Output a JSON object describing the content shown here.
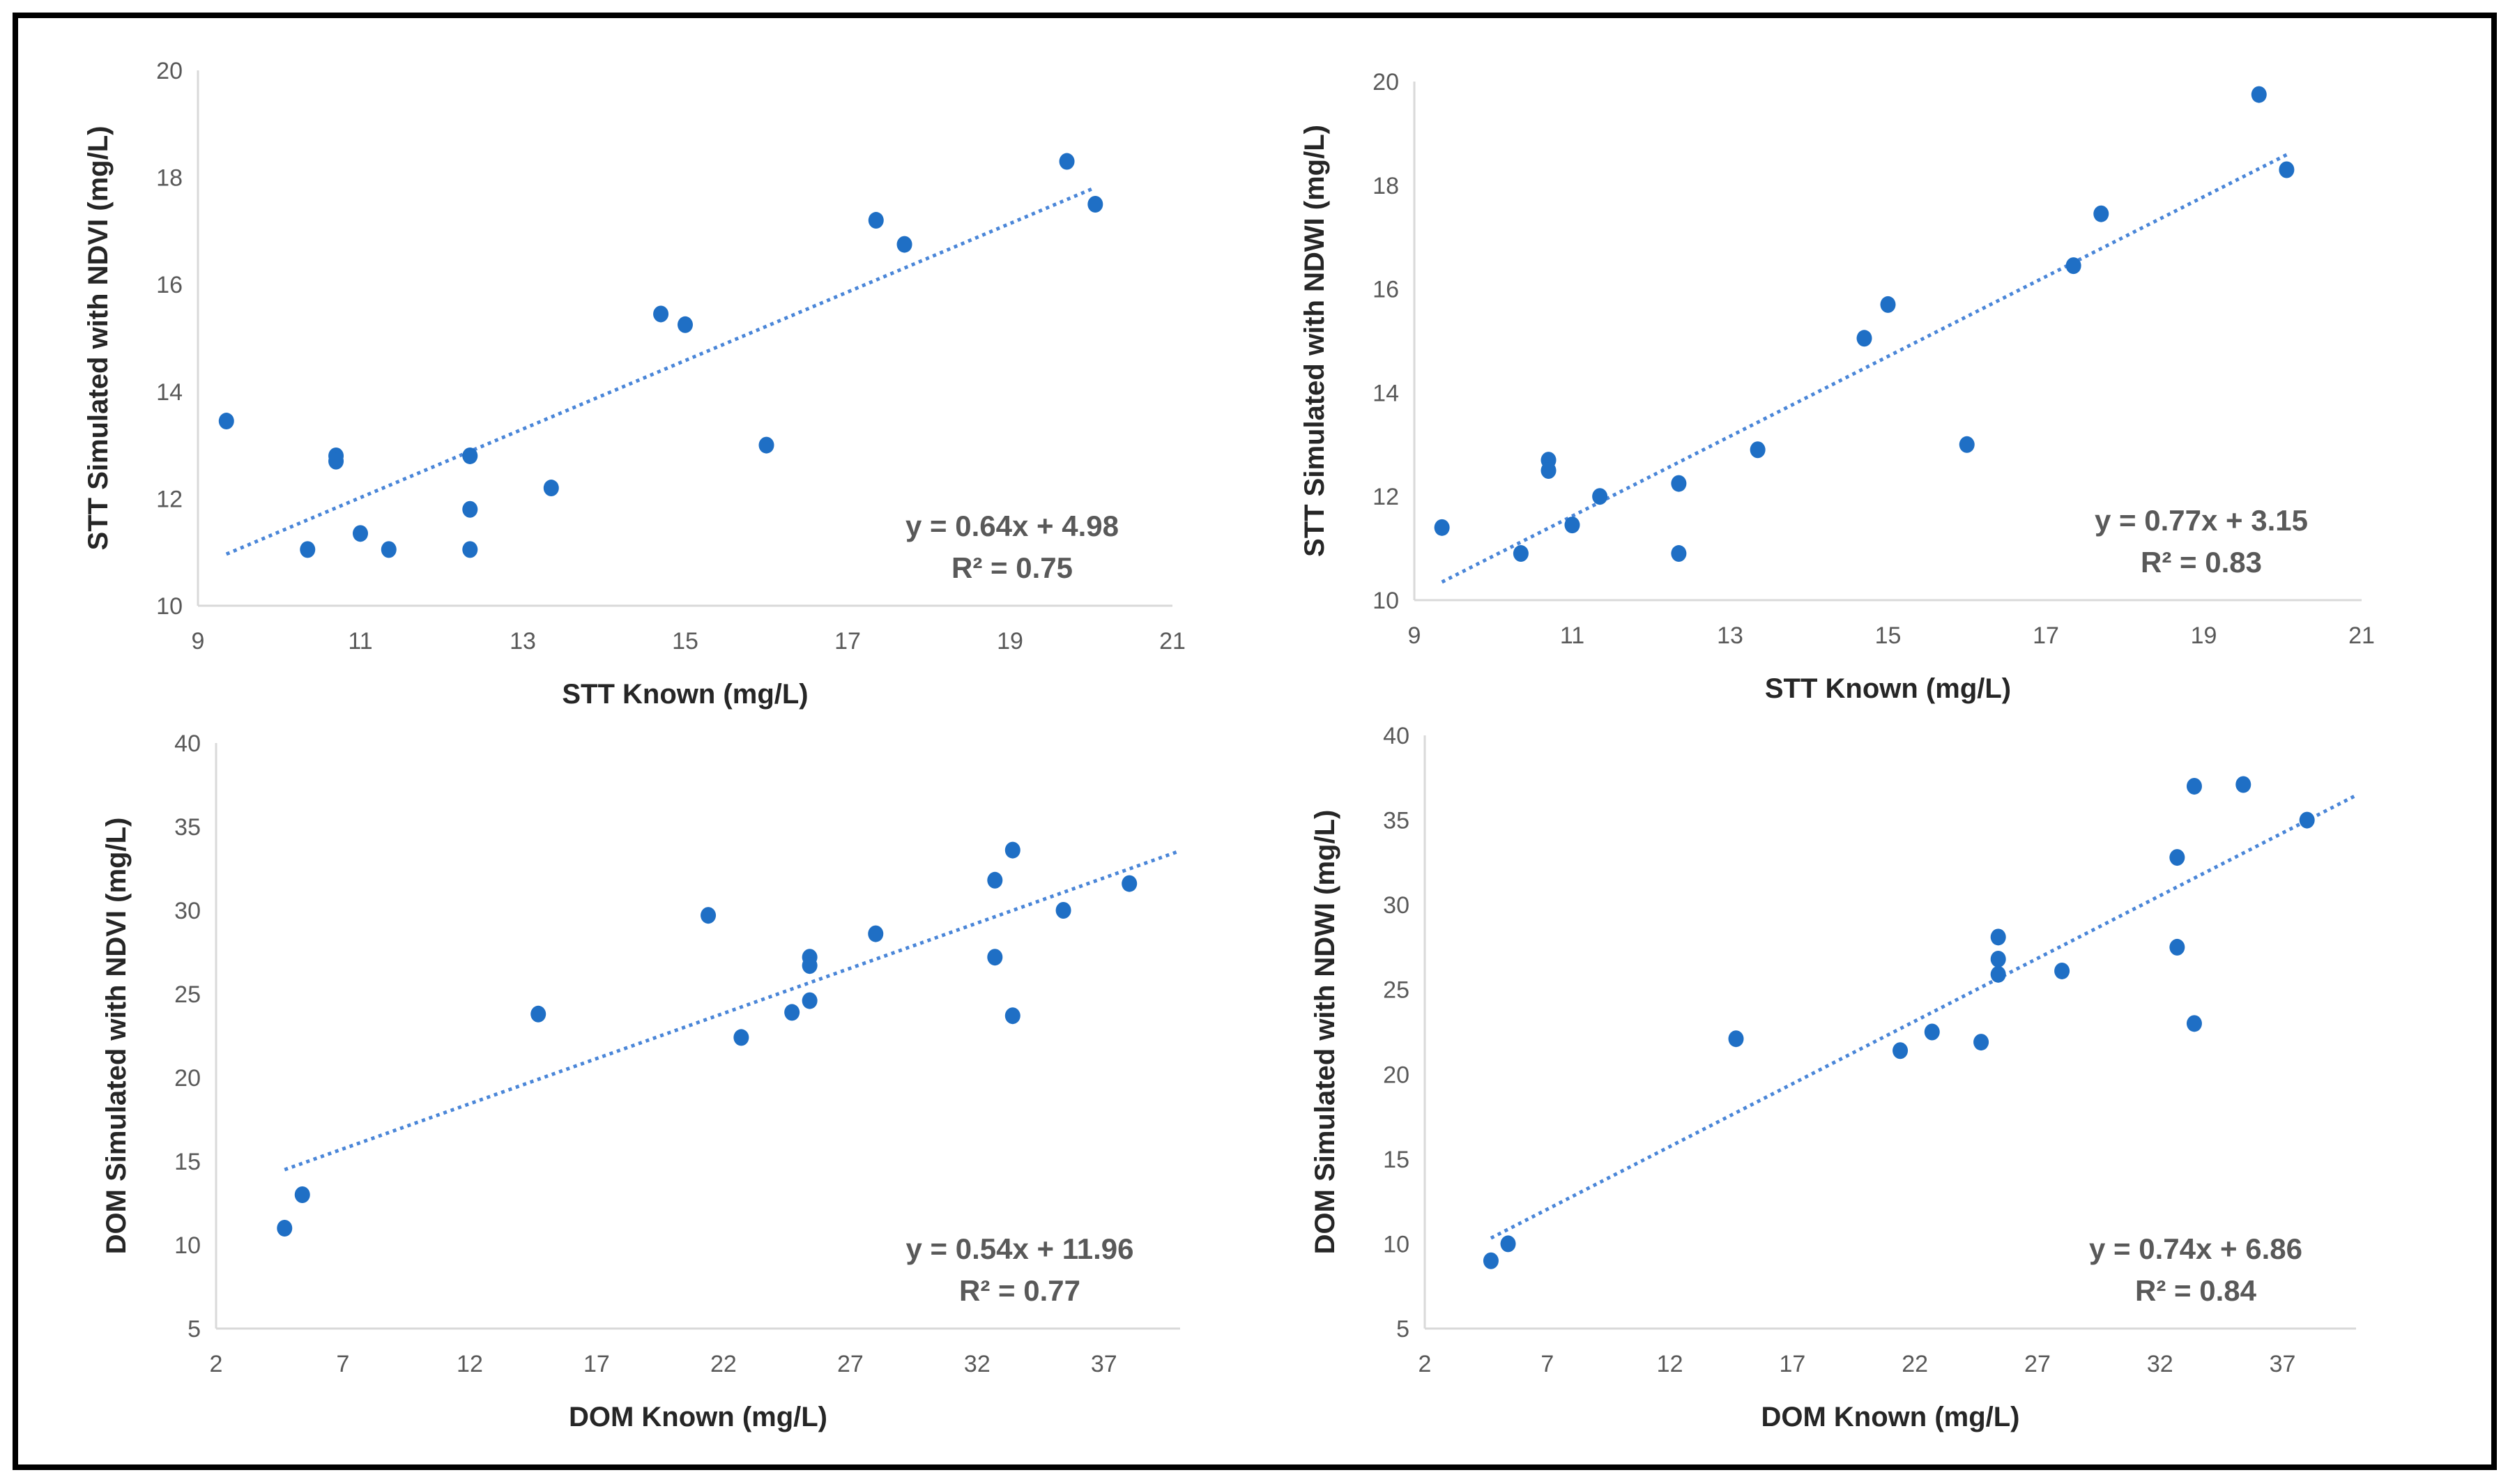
{
  "colors": {
    "point": "#1f6fc5",
    "trend": "#4a86d8",
    "axis": "#d9d9d9",
    "frame": "#000000"
  },
  "chart_data": [
    {
      "type": "scatter",
      "xlabel": "STT Known (mg/L)",
      "ylabel": "STT Simulated with NDVI (mg/L)",
      "xlim": [
        9,
        21
      ],
      "ylim": [
        10,
        20
      ],
      "xticks": [
        9,
        11,
        13,
        15,
        17,
        19,
        21
      ],
      "yticks": [
        10,
        12,
        14,
        16,
        18,
        20
      ],
      "points": [
        [
          9.35,
          13.45
        ],
        [
          10.35,
          11.05
        ],
        [
          10.7,
          12.8
        ],
        [
          10.7,
          12.7
        ],
        [
          11.0,
          11.35
        ],
        [
          11.35,
          11.05
        ],
        [
          12.35,
          12.8
        ],
        [
          12.35,
          11.8
        ],
        [
          12.35,
          11.05
        ],
        [
          13.35,
          12.2
        ],
        [
          14.7,
          15.45
        ],
        [
          15.0,
          15.25
        ],
        [
          16.0,
          13.0
        ],
        [
          17.35,
          17.2
        ],
        [
          17.7,
          16.75
        ],
        [
          19.7,
          18.3
        ],
        [
          20.05,
          17.5
        ]
      ],
      "trendline": {
        "slope": 0.64,
        "intercept": 4.98,
        "x_range": [
          9.35,
          20.05
        ]
      },
      "equation": "y = 0.64x + 4.98",
      "r2": "R² = 0.75"
    },
    {
      "type": "scatter",
      "xlabel": "STT Known (mg/L)",
      "ylabel": "STT Simulated with NDWI (mg/L)",
      "xlim": [
        9,
        21
      ],
      "ylim": [
        10,
        20
      ],
      "xticks": [
        9,
        11,
        13,
        15,
        17,
        19,
        21
      ],
      "yticks": [
        10,
        12,
        14,
        16,
        18,
        20
      ],
      "points": [
        [
          9.35,
          11.4
        ],
        [
          10.35,
          10.9
        ],
        [
          10.7,
          12.7
        ],
        [
          10.7,
          12.5
        ],
        [
          11.0,
          11.45
        ],
        [
          11.35,
          12.0
        ],
        [
          12.35,
          12.25
        ],
        [
          12.35,
          10.9
        ],
        [
          13.35,
          12.9
        ],
        [
          14.7,
          15.05
        ],
        [
          15.0,
          15.7
        ],
        [
          16.0,
          13.0
        ],
        [
          17.35,
          16.45
        ],
        [
          17.7,
          17.45
        ],
        [
          19.7,
          19.75
        ],
        [
          20.05,
          18.3
        ]
      ],
      "trendline": {
        "slope": 0.77,
        "intercept": 3.15,
        "x_range": [
          9.35,
          20.05
        ]
      },
      "equation": "y = 0.77x + 3.15",
      "r2": "R² = 0.83"
    },
    {
      "type": "scatter",
      "xlabel": "DOM Known (mg/L)",
      "ylabel": "DOM Simulated with NDVI (mg/L)",
      "xlim": [
        2,
        40
      ],
      "ylim": [
        5,
        40
      ],
      "xticks": [
        2,
        7,
        12,
        17,
        22,
        27,
        32,
        37
      ],
      "yticks": [
        5,
        10,
        15,
        20,
        25,
        30,
        35,
        40
      ],
      "points": [
        [
          4.7,
          11.0
        ],
        [
          5.4,
          13.0
        ],
        [
          14.7,
          23.8
        ],
        [
          21.4,
          29.7
        ],
        [
          22.7,
          22.4
        ],
        [
          24.7,
          23.9
        ],
        [
          25.4,
          27.2
        ],
        [
          25.4,
          26.7
        ],
        [
          25.4,
          24.6
        ],
        [
          28.0,
          28.6
        ],
        [
          32.7,
          31.8
        ],
        [
          32.7,
          27.2
        ],
        [
          33.4,
          33.6
        ],
        [
          33.4,
          23.7
        ],
        [
          35.4,
          30.0
        ],
        [
          38.0,
          31.6
        ]
      ],
      "trendline": {
        "slope": 0.54,
        "intercept": 11.96,
        "x_range": [
          4.7,
          40
        ]
      },
      "equation": "y = 0.54x + 11.96",
      "r2": "R² = 0.77"
    },
    {
      "type": "scatter",
      "xlabel": "DOM Known (mg/L)",
      "ylabel": "DOM Simulated with NDWI (mg/L)",
      "xlim": [
        2,
        40
      ],
      "ylim": [
        5,
        40
      ],
      "xticks": [
        2,
        7,
        12,
        17,
        22,
        27,
        32,
        37
      ],
      "yticks": [
        5,
        10,
        15,
        20,
        25,
        30,
        35,
        40
      ],
      "points": [
        [
          4.7,
          9.0
        ],
        [
          5.4,
          10.0
        ],
        [
          14.7,
          22.1
        ],
        [
          21.4,
          21.4
        ],
        [
          22.7,
          22.5
        ],
        [
          24.7,
          21.9
        ],
        [
          25.4,
          28.1
        ],
        [
          25.4,
          26.8
        ],
        [
          25.4,
          25.9
        ],
        [
          28.0,
          26.1
        ],
        [
          32.7,
          32.8
        ],
        [
          32.7,
          27.5
        ],
        [
          33.4,
          37.0
        ],
        [
          33.4,
          23.0
        ],
        [
          35.4,
          37.1
        ],
        [
          38.0,
          35.0
        ]
      ],
      "trendline": {
        "slope": 0.74,
        "intercept": 6.86,
        "x_range": [
          4.7,
          40
        ]
      },
      "equation": "y = 0.74x + 6.86",
      "r2": "R² = 0.84"
    }
  ]
}
